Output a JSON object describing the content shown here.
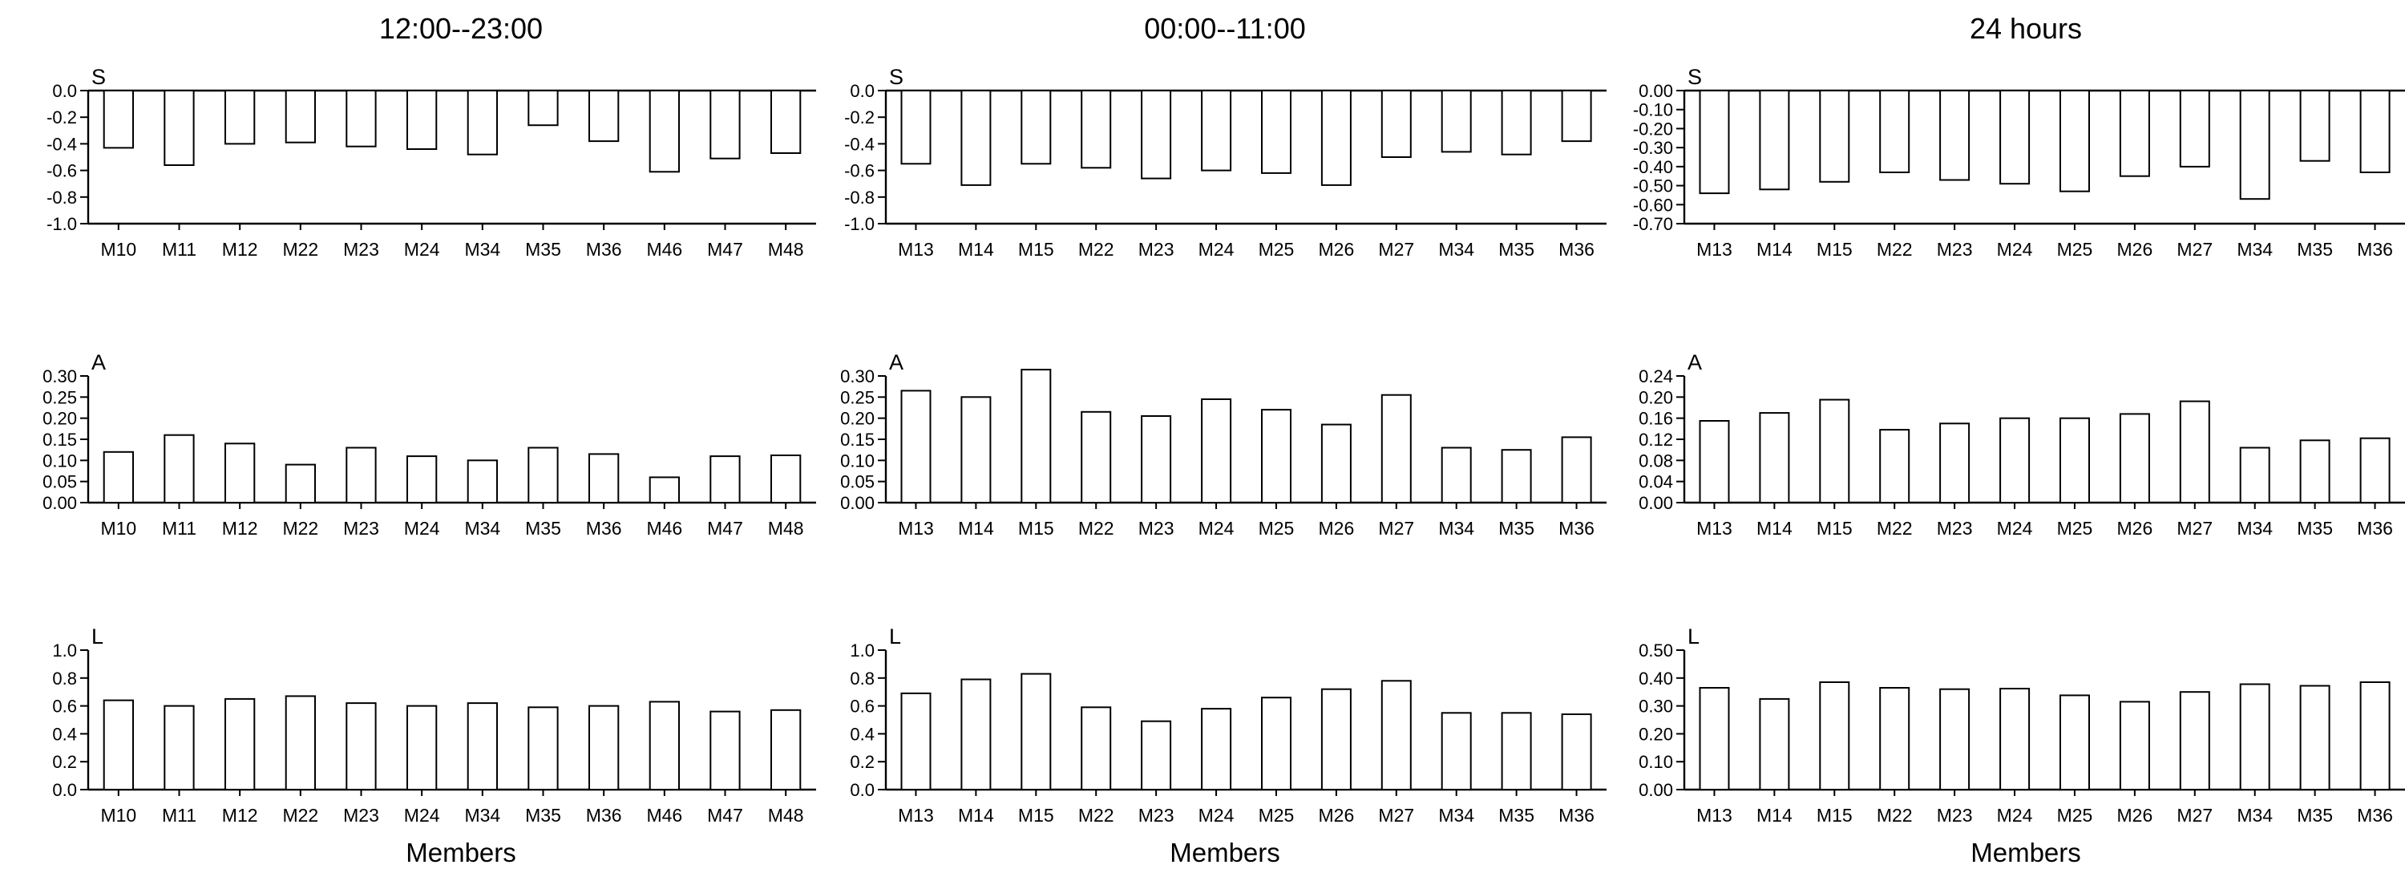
{
  "figure": {
    "column_titles": [
      "12:00--23:00",
      "00:00--11:00",
      "24 hours"
    ],
    "xlabel": "Members"
  },
  "chart_data": [
    {
      "type": "bar",
      "title": "12:00--23:00",
      "panel_label": "S",
      "xlabel": "",
      "categories": [
        "M10",
        "M11",
        "M12",
        "M22",
        "M23",
        "M24",
        "M34",
        "M35",
        "M36",
        "M46",
        "M47",
        "M48"
      ],
      "values": [
        -0.43,
        -0.56,
        -0.4,
        -0.39,
        -0.42,
        -0.44,
        -0.48,
        -0.26,
        -0.38,
        -0.61,
        -0.51,
        -0.47
      ],
      "ylim": [
        -1.0,
        0.0
      ],
      "yticks": [
        0.0,
        -0.2,
        -0.4,
        -0.6,
        -0.8,
        -1.0
      ],
      "ytick_labels": [
        "0.0",
        "-0.2",
        "-0.4",
        "-0.6",
        "-0.8",
        "-1.0"
      ]
    },
    {
      "type": "bar",
      "title": "00:00--11:00",
      "panel_label": "S",
      "xlabel": "",
      "categories": [
        "M13",
        "M14",
        "M15",
        "M22",
        "M23",
        "M24",
        "M25",
        "M26",
        "M27",
        "M34",
        "M35",
        "M36"
      ],
      "values": [
        -0.55,
        -0.71,
        -0.55,
        -0.58,
        -0.66,
        -0.6,
        -0.62,
        -0.71,
        -0.5,
        -0.46,
        -0.48,
        -0.38
      ],
      "ylim": [
        -1.0,
        0.0
      ],
      "yticks": [
        0.0,
        -0.2,
        -0.4,
        -0.6,
        -0.8,
        -1.0
      ],
      "ytick_labels": [
        "0.0",
        "-0.2",
        "-0.4",
        "-0.6",
        "-0.8",
        "-1.0"
      ]
    },
    {
      "type": "bar",
      "title": "24 hours",
      "panel_label": "S",
      "xlabel": "",
      "categories": [
        "M13",
        "M14",
        "M15",
        "M22",
        "M23",
        "M24",
        "M25",
        "M26",
        "M27",
        "M34",
        "M35",
        "M36"
      ],
      "values": [
        -0.54,
        -0.52,
        -0.48,
        -0.43,
        -0.47,
        -0.49,
        -0.53,
        -0.45,
        -0.4,
        -0.57,
        -0.37,
        -0.43
      ],
      "ylim": [
        -0.7,
        0.0
      ],
      "yticks": [
        0.0,
        -0.1,
        -0.2,
        -0.3,
        -0.4,
        -0.5,
        -0.6,
        -0.7
      ],
      "ytick_labels": [
        "0.00",
        "-0.10",
        "-0.20",
        "-0.30",
        "-0.40",
        "-0.50",
        "-0.60",
        "-0.70"
      ]
    },
    {
      "type": "bar",
      "title": "",
      "panel_label": "A",
      "xlabel": "",
      "categories": [
        "M10",
        "M11",
        "M12",
        "M22",
        "M23",
        "M24",
        "M34",
        "M35",
        "M36",
        "M46",
        "M47",
        "M48"
      ],
      "values": [
        0.12,
        0.16,
        0.14,
        0.09,
        0.13,
        0.11,
        0.1,
        0.13,
        0.115,
        0.06,
        0.11,
        0.112
      ],
      "ylim": [
        0.0,
        0.3
      ],
      "yticks": [
        0.0,
        0.05,
        0.1,
        0.15,
        0.2,
        0.25,
        0.3
      ],
      "ytick_labels": [
        "0.00",
        "0.05",
        "0.10",
        "0.15",
        "0.20",
        "0.25",
        "0.30"
      ]
    },
    {
      "type": "bar",
      "title": "",
      "panel_label": "A",
      "xlabel": "",
      "categories": [
        "M13",
        "M14",
        "M15",
        "M22",
        "M23",
        "M24",
        "M25",
        "M26",
        "M27",
        "M34",
        "M35",
        "M36"
      ],
      "values": [
        0.265,
        0.25,
        0.315,
        0.215,
        0.205,
        0.245,
        0.22,
        0.185,
        0.255,
        0.13,
        0.125,
        0.155
      ],
      "ylim": [
        0.0,
        0.3
      ],
      "yticks": [
        0.0,
        0.05,
        0.1,
        0.15,
        0.2,
        0.25,
        0.3
      ],
      "ytick_labels": [
        "0.00",
        "0.05",
        "0.10",
        "0.15",
        "0.20",
        "0.25",
        "0.30"
      ]
    },
    {
      "type": "bar",
      "title": "",
      "panel_label": "A",
      "xlabel": "",
      "categories": [
        "M13",
        "M14",
        "M15",
        "M22",
        "M23",
        "M24",
        "M25",
        "M26",
        "M27",
        "M34",
        "M35",
        "M36"
      ],
      "values": [
        0.155,
        0.17,
        0.195,
        0.138,
        0.15,
        0.16,
        0.16,
        0.168,
        0.192,
        0.104,
        0.118,
        0.122
      ],
      "ylim": [
        0.0,
        0.24
      ],
      "yticks": [
        0.0,
        0.04,
        0.08,
        0.12,
        0.16,
        0.2,
        0.24
      ],
      "ytick_labels": [
        "0.00",
        "0.04",
        "0.08",
        "0.12",
        "0.16",
        "0.20",
        "0.24"
      ]
    },
    {
      "type": "bar",
      "title": "",
      "panel_label": "L",
      "xlabel": "Members",
      "categories": [
        "M10",
        "M11",
        "M12",
        "M22",
        "M23",
        "M24",
        "M34",
        "M35",
        "M36",
        "M46",
        "M47",
        "M48"
      ],
      "values": [
        0.64,
        0.6,
        0.65,
        0.67,
        0.62,
        0.6,
        0.62,
        0.59,
        0.6,
        0.63,
        0.56,
        0.57
      ],
      "ylim": [
        0.0,
        1.0
      ],
      "yticks": [
        0.0,
        0.2,
        0.4,
        0.6,
        0.8,
        1.0
      ],
      "ytick_labels": [
        "0.0",
        "0.2",
        "0.4",
        "0.6",
        "0.8",
        "1.0"
      ]
    },
    {
      "type": "bar",
      "title": "",
      "panel_label": "L",
      "xlabel": "Members",
      "categories": [
        "M13",
        "M14",
        "M15",
        "M22",
        "M23",
        "M24",
        "M25",
        "M26",
        "M27",
        "M34",
        "M35",
        "M36"
      ],
      "values": [
        0.69,
        0.79,
        0.83,
        0.59,
        0.49,
        0.58,
        0.66,
        0.72,
        0.78,
        0.55,
        0.55,
        0.54
      ],
      "ylim": [
        0.0,
        1.0
      ],
      "yticks": [
        0.0,
        0.2,
        0.4,
        0.6,
        0.8,
        1.0
      ],
      "ytick_labels": [
        "0.0",
        "0.2",
        "0.4",
        "0.6",
        "0.8",
        "1.0"
      ]
    },
    {
      "type": "bar",
      "title": "",
      "panel_label": "L",
      "xlabel": "Members",
      "categories": [
        "M13",
        "M14",
        "M15",
        "M22",
        "M23",
        "M24",
        "M25",
        "M26",
        "M27",
        "M34",
        "M35",
        "M36"
      ],
      "values": [
        0.365,
        0.325,
        0.385,
        0.365,
        0.36,
        0.362,
        0.338,
        0.315,
        0.35,
        0.378,
        0.372,
        0.385
      ],
      "ylim": [
        0.0,
        0.5
      ],
      "yticks": [
        0.0,
        0.1,
        0.2,
        0.3,
        0.4,
        0.5
      ],
      "ytick_labels": [
        "0.00",
        "0.10",
        "0.20",
        "0.30",
        "0.40",
        "0.50"
      ]
    }
  ]
}
